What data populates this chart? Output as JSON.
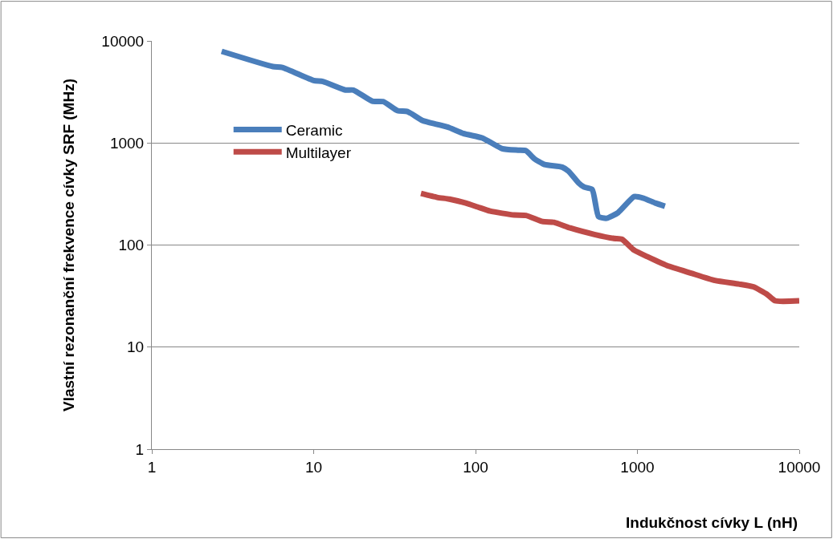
{
  "chart_data": {
    "type": "line",
    "xlabel": "Indukčnost cívky L (nH)",
    "ylabel": "Vlastní rezonanční frekvence cívky SRF (MHz)",
    "log": "xy",
    "xlim": [
      1,
      10000
    ],
    "ylim": [
      1,
      10000
    ],
    "xticks": [
      1,
      10,
      100,
      1000,
      10000
    ],
    "yticks": [
      1,
      10,
      100,
      1000,
      10000
    ],
    "grid": "y",
    "legend": "top left",
    "line_style": "solid",
    "marker": "none",
    "series": [
      {
        "name": "Ceramic",
        "color": "#4a7ebb",
        "x": [
          2.7,
          5.6,
          6.4,
          10,
          11.4,
          15.7,
          17.6,
          23,
          27,
          33,
          38,
          47,
          58,
          69,
          84,
          110,
          123,
          146,
          183,
          205,
          231,
          267,
          343,
          375,
          434,
          468,
          526,
          575,
          646,
          760,
          955,
          1090,
          1290,
          1480
        ],
        "values": [
          7900,
          5600,
          5500,
          4100,
          4000,
          3300,
          3300,
          2570,
          2540,
          2070,
          2030,
          1660,
          1520,
          1410,
          1240,
          1120,
          1020,
          880,
          850,
          840,
          700,
          615,
          580,
          530,
          405,
          370,
          350,
          190,
          183,
          208,
          298,
          288,
          258,
          240
        ]
      },
      {
        "name": "Multilayer",
        "color": "#be4b48",
        "x": [
          46,
          58,
          69,
          87,
          103,
          123,
          173,
          205,
          259,
          305,
          384,
          543,
          718,
          802,
          955,
          1150,
          1520,
          2150,
          3010,
          4230,
          5200,
          6300,
          7100,
          10000
        ],
        "values": [
          320,
          293,
          282,
          258,
          236,
          215,
          197,
          195,
          170,
          167,
          147,
          127,
          116,
          114,
          89,
          77,
          63,
          53,
          45,
          41.5,
          39,
          33,
          28.4,
          28.4
        ]
      }
    ]
  }
}
